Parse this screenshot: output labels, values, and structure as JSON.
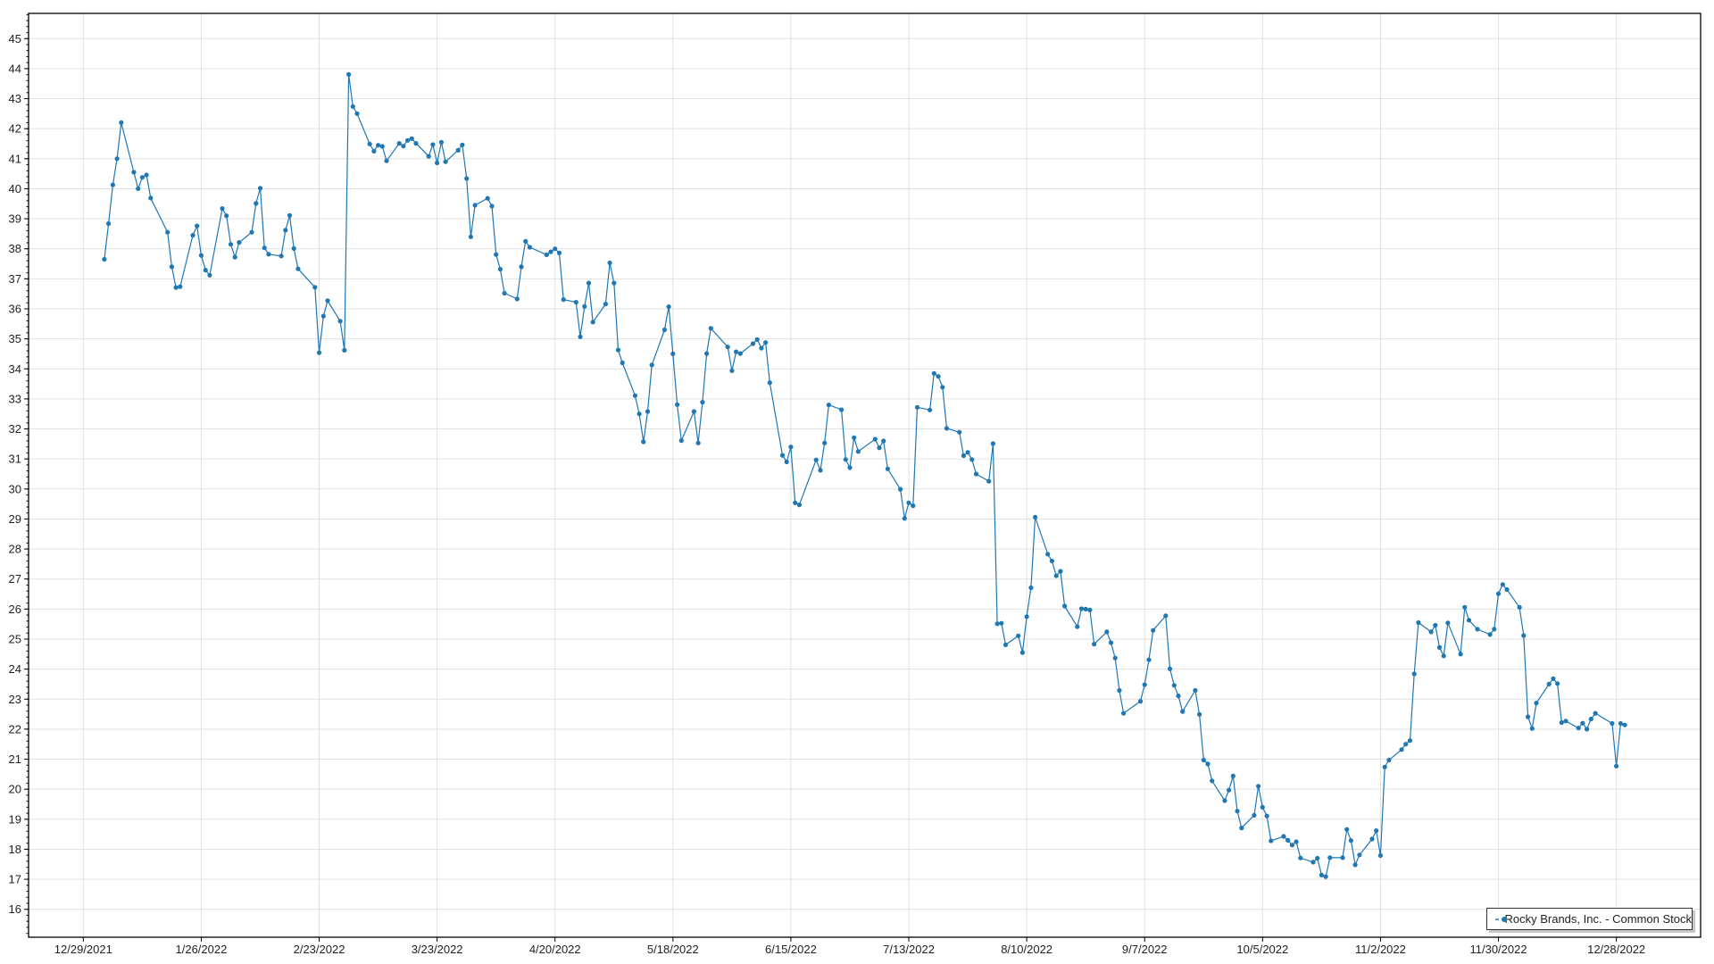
{
  "chart_data": {
    "type": "line",
    "title": "",
    "xlabel": "",
    "ylabel": "",
    "xlim": [
      "2021-12-16",
      "2023-01-17"
    ],
    "ylim": [
      15.07,
      45.84
    ],
    "grid": true,
    "legend_placement": "bottom-right",
    "markers": true,
    "color": "#1f77b4",
    "yticks": [
      "16",
      "17",
      "18",
      "19",
      "20",
      "21",
      "22",
      "23",
      "24",
      "25",
      "26",
      "27",
      "28",
      "29",
      "30",
      "31",
      "32",
      "33",
      "34",
      "35",
      "36",
      "37",
      "38",
      "39",
      "40",
      "41",
      "42",
      "43",
      "44",
      "45"
    ],
    "xticks": [
      {
        "date": "2021-12-29",
        "label": "12/29/2021"
      },
      {
        "date": "2022-01-26",
        "label": "1/26/2022"
      },
      {
        "date": "2022-02-23",
        "label": "2/23/2022"
      },
      {
        "date": "2022-03-23",
        "label": "3/23/2022"
      },
      {
        "date": "2022-04-20",
        "label": "4/20/2022"
      },
      {
        "date": "2022-05-18",
        "label": "5/18/2022"
      },
      {
        "date": "2022-06-15",
        "label": "6/15/2022"
      },
      {
        "date": "2022-07-13",
        "label": "7/13/2022"
      },
      {
        "date": "2022-08-10",
        "label": "8/10/2022"
      },
      {
        "date": "2022-09-07",
        "label": "9/7/2022"
      },
      {
        "date": "2022-10-05",
        "label": "10/5/2022"
      },
      {
        "date": "2022-11-02",
        "label": "11/2/2022"
      },
      {
        "date": "2022-11-30",
        "label": "11/30/2022"
      },
      {
        "date": "2022-12-28",
        "label": "12/28/2022"
      }
    ],
    "series": [
      {
        "name": "Rocky Brands, Inc. - Common Stock",
        "points": [
          [
            "2022-01-03",
            37.65
          ],
          [
            "2022-01-04",
            38.84
          ],
          [
            "2022-01-05",
            40.13
          ],
          [
            "2022-01-06",
            41.0
          ],
          [
            "2022-01-07",
            42.2
          ],
          [
            "2022-01-10",
            40.55
          ],
          [
            "2022-01-11",
            40.0
          ],
          [
            "2022-01-12",
            40.38
          ],
          [
            "2022-01-13",
            40.46
          ],
          [
            "2022-01-14",
            39.69
          ],
          [
            "2022-01-18",
            38.55
          ],
          [
            "2022-01-19",
            37.4
          ],
          [
            "2022-01-20",
            36.71
          ],
          [
            "2022-01-21",
            36.74
          ],
          [
            "2022-01-24",
            38.45
          ],
          [
            "2022-01-25",
            38.76
          ],
          [
            "2022-01-26",
            37.78
          ],
          [
            "2022-01-27",
            37.29
          ],
          [
            "2022-01-28",
            37.12
          ],
          [
            "2022-01-31",
            39.34
          ],
          [
            "2022-02-01",
            39.1
          ],
          [
            "2022-02-02",
            38.15
          ],
          [
            "2022-02-03",
            37.72
          ],
          [
            "2022-02-04",
            38.21
          ],
          [
            "2022-02-07",
            38.55
          ],
          [
            "2022-02-08",
            39.51
          ],
          [
            "2022-02-09",
            40.02
          ],
          [
            "2022-02-10",
            38.03
          ],
          [
            "2022-02-11",
            37.82
          ],
          [
            "2022-02-14",
            37.76
          ],
          [
            "2022-02-15",
            38.62
          ],
          [
            "2022-02-16",
            39.11
          ],
          [
            "2022-02-17",
            38.01
          ],
          [
            "2022-02-18",
            37.33
          ],
          [
            "2022-02-22",
            36.72
          ],
          [
            "2022-02-23",
            34.54
          ],
          [
            "2022-02-24",
            35.76
          ],
          [
            "2022-02-25",
            36.27
          ],
          [
            "2022-02-28",
            35.59
          ],
          [
            "2022-03-01",
            34.62
          ],
          [
            "2022-03-02",
            43.81
          ],
          [
            "2022-03-03",
            42.74
          ],
          [
            "2022-03-04",
            42.5
          ],
          [
            "2022-03-07",
            41.49
          ],
          [
            "2022-03-08",
            41.25
          ],
          [
            "2022-03-09",
            41.45
          ],
          [
            "2022-03-10",
            41.41
          ],
          [
            "2022-03-11",
            40.93
          ],
          [
            "2022-03-14",
            41.51
          ],
          [
            "2022-03-15",
            41.42
          ],
          [
            "2022-03-16",
            41.61
          ],
          [
            "2022-03-17",
            41.67
          ],
          [
            "2022-03-18",
            41.51
          ],
          [
            "2022-03-21",
            41.08
          ],
          [
            "2022-03-22",
            41.47
          ],
          [
            "2022-03-23",
            40.86
          ],
          [
            "2022-03-24",
            41.55
          ],
          [
            "2022-03-25",
            40.9
          ],
          [
            "2022-03-28",
            41.28
          ],
          [
            "2022-03-29",
            41.46
          ],
          [
            "2022-03-30",
            40.34
          ],
          [
            "2022-03-31",
            38.4
          ],
          [
            "2022-04-01",
            39.45
          ],
          [
            "2022-04-04",
            39.68
          ],
          [
            "2022-04-05",
            39.42
          ],
          [
            "2022-04-06",
            37.81
          ],
          [
            "2022-04-07",
            37.32
          ],
          [
            "2022-04-08",
            36.52
          ],
          [
            "2022-04-11",
            36.33
          ],
          [
            "2022-04-12",
            37.4
          ],
          [
            "2022-04-13",
            38.25
          ],
          [
            "2022-04-14",
            38.05
          ],
          [
            "2022-04-18",
            37.8
          ],
          [
            "2022-04-19",
            37.9
          ],
          [
            "2022-04-20",
            38.0
          ],
          [
            "2022-04-21",
            37.86
          ],
          [
            "2022-04-22",
            36.31
          ],
          [
            "2022-04-25",
            36.22
          ],
          [
            "2022-04-26",
            35.07
          ],
          [
            "2022-04-27",
            36.08
          ],
          [
            "2022-04-28",
            36.86
          ],
          [
            "2022-04-29",
            35.56
          ],
          [
            "2022-05-02",
            36.16
          ],
          [
            "2022-05-03",
            37.53
          ],
          [
            "2022-05-04",
            36.86
          ],
          [
            "2022-05-05",
            34.63
          ],
          [
            "2022-05-06",
            34.2
          ],
          [
            "2022-05-09",
            33.11
          ],
          [
            "2022-05-10",
            32.5
          ],
          [
            "2022-05-11",
            31.57
          ],
          [
            "2022-05-12",
            32.58
          ],
          [
            "2022-05-13",
            34.13
          ],
          [
            "2022-05-16",
            35.3
          ],
          [
            "2022-05-17",
            36.07
          ],
          [
            "2022-05-18",
            34.5
          ],
          [
            "2022-05-19",
            32.81
          ],
          [
            "2022-05-20",
            31.61
          ],
          [
            "2022-05-23",
            32.58
          ],
          [
            "2022-05-24",
            31.53
          ],
          [
            "2022-05-25",
            32.89
          ],
          [
            "2022-05-26",
            34.51
          ],
          [
            "2022-05-27",
            35.35
          ],
          [
            "2022-05-31",
            34.73
          ],
          [
            "2022-06-01",
            33.94
          ],
          [
            "2022-06-02",
            34.57
          ],
          [
            "2022-06-03",
            34.51
          ],
          [
            "2022-06-06",
            34.84
          ],
          [
            "2022-06-07",
            34.98
          ],
          [
            "2022-06-08",
            34.69
          ],
          [
            "2022-06-09",
            34.88
          ],
          [
            "2022-06-10",
            33.54
          ],
          [
            "2022-06-13",
            31.12
          ],
          [
            "2022-06-14",
            30.9
          ],
          [
            "2022-06-15",
            31.4
          ],
          [
            "2022-06-16",
            29.54
          ],
          [
            "2022-06-17",
            29.47
          ],
          [
            "2022-06-21",
            30.97
          ],
          [
            "2022-06-22",
            30.62
          ],
          [
            "2022-06-23",
            31.53
          ],
          [
            "2022-06-24",
            32.8
          ],
          [
            "2022-06-27",
            32.64
          ],
          [
            "2022-06-28",
            30.98
          ],
          [
            "2022-06-29",
            30.71
          ],
          [
            "2022-06-30",
            31.71
          ],
          [
            "2022-07-01",
            31.25
          ],
          [
            "2022-07-05",
            31.66
          ],
          [
            "2022-07-06",
            31.37
          ],
          [
            "2022-07-07",
            31.6
          ],
          [
            "2022-07-08",
            30.67
          ],
          [
            "2022-07-11",
            29.99
          ],
          [
            "2022-07-12",
            29.02
          ],
          [
            "2022-07-13",
            29.54
          ],
          [
            "2022-07-14",
            29.44
          ],
          [
            "2022-07-15",
            32.72
          ],
          [
            "2022-07-18",
            32.63
          ],
          [
            "2022-07-19",
            33.85
          ],
          [
            "2022-07-20",
            33.75
          ],
          [
            "2022-07-21",
            33.39
          ],
          [
            "2022-07-22",
            32.02
          ],
          [
            "2022-07-25",
            31.89
          ],
          [
            "2022-07-26",
            31.11
          ],
          [
            "2022-07-27",
            31.22
          ],
          [
            "2022-07-28",
            30.98
          ],
          [
            "2022-07-29",
            30.5
          ],
          [
            "2022-08-01",
            30.26
          ],
          [
            "2022-08-02",
            31.51
          ],
          [
            "2022-08-03",
            25.51
          ],
          [
            "2022-08-04",
            25.53
          ],
          [
            "2022-08-05",
            24.81
          ],
          [
            "2022-08-08",
            25.11
          ],
          [
            "2022-08-09",
            24.55
          ],
          [
            "2022-08-10",
            25.75
          ],
          [
            "2022-08-11",
            26.71
          ],
          [
            "2022-08-12",
            29.06
          ],
          [
            "2022-08-15",
            27.83
          ],
          [
            "2022-08-16",
            27.6
          ],
          [
            "2022-08-17",
            27.11
          ],
          [
            "2022-08-18",
            27.26
          ],
          [
            "2022-08-19",
            26.1
          ],
          [
            "2022-08-22",
            25.41
          ],
          [
            "2022-08-23",
            26.01
          ],
          [
            "2022-08-24",
            26.0
          ],
          [
            "2022-08-25",
            25.97
          ],
          [
            "2022-08-26",
            24.83
          ],
          [
            "2022-08-29",
            25.24
          ],
          [
            "2022-08-30",
            24.88
          ],
          [
            "2022-08-31",
            24.37
          ],
          [
            "2022-09-01",
            23.29
          ],
          [
            "2022-09-02",
            22.53
          ],
          [
            "2022-09-06",
            22.93
          ],
          [
            "2022-09-07",
            23.48
          ],
          [
            "2022-09-08",
            24.31
          ],
          [
            "2022-09-09",
            25.29
          ],
          [
            "2022-09-12",
            25.78
          ],
          [
            "2022-09-13",
            24.01
          ],
          [
            "2022-09-14",
            23.46
          ],
          [
            "2022-09-15",
            23.11
          ],
          [
            "2022-09-16",
            22.59
          ],
          [
            "2022-09-19",
            23.29
          ],
          [
            "2022-09-20",
            22.49
          ],
          [
            "2022-09-21",
            20.97
          ],
          [
            "2022-09-22",
            20.84
          ],
          [
            "2022-09-23",
            20.28
          ],
          [
            "2022-09-26",
            19.62
          ],
          [
            "2022-09-27",
            19.97
          ],
          [
            "2022-09-28",
            20.44
          ],
          [
            "2022-09-29",
            19.27
          ],
          [
            "2022-09-30",
            18.71
          ],
          [
            "2022-10-03",
            19.13
          ],
          [
            "2022-10-04",
            20.1
          ],
          [
            "2022-10-05",
            19.4
          ],
          [
            "2022-10-06",
            19.11
          ],
          [
            "2022-10-07",
            18.28
          ],
          [
            "2022-10-10",
            18.43
          ],
          [
            "2022-10-11",
            18.3
          ],
          [
            "2022-10-12",
            18.14
          ],
          [
            "2022-10-13",
            18.25
          ],
          [
            "2022-10-14",
            17.71
          ],
          [
            "2022-10-17",
            17.57
          ],
          [
            "2022-10-18",
            17.7
          ],
          [
            "2022-10-19",
            17.14
          ],
          [
            "2022-10-20",
            17.09
          ],
          [
            "2022-10-21",
            17.72
          ],
          [
            "2022-10-24",
            17.72
          ],
          [
            "2022-10-25",
            18.66
          ],
          [
            "2022-10-26",
            18.29
          ],
          [
            "2022-10-27",
            17.48
          ],
          [
            "2022-10-28",
            17.81
          ],
          [
            "2022-10-31",
            18.34
          ],
          [
            "2022-11-01",
            18.62
          ],
          [
            "2022-11-02",
            17.79
          ],
          [
            "2022-11-03",
            20.74
          ],
          [
            "2022-11-04",
            20.97
          ],
          [
            "2022-11-07",
            21.32
          ],
          [
            "2022-11-08",
            21.5
          ],
          [
            "2022-11-09",
            21.62
          ],
          [
            "2022-11-10",
            23.84
          ],
          [
            "2022-11-11",
            25.55
          ],
          [
            "2022-11-14",
            25.24
          ],
          [
            "2022-11-15",
            25.46
          ],
          [
            "2022-11-16",
            24.72
          ],
          [
            "2022-11-17",
            24.44
          ],
          [
            "2022-11-18",
            25.54
          ],
          [
            "2022-11-21",
            24.5
          ],
          [
            "2022-11-22",
            26.06
          ],
          [
            "2022-11-23",
            25.63
          ],
          [
            "2022-11-25",
            25.33
          ],
          [
            "2022-11-28",
            25.15
          ],
          [
            "2022-11-29",
            25.33
          ],
          [
            "2022-11-30",
            26.51
          ],
          [
            "2022-12-01",
            26.82
          ],
          [
            "2022-12-02",
            26.65
          ],
          [
            "2022-12-05",
            26.06
          ],
          [
            "2022-12-06",
            25.12
          ],
          [
            "2022-12-07",
            22.41
          ],
          [
            "2022-12-08",
            22.02
          ],
          [
            "2022-12-09",
            22.87
          ],
          [
            "2022-12-12",
            23.5
          ],
          [
            "2022-12-13",
            23.68
          ],
          [
            "2022-12-14",
            23.52
          ],
          [
            "2022-12-15",
            22.22
          ],
          [
            "2022-12-16",
            22.27
          ],
          [
            "2022-12-19",
            22.04
          ],
          [
            "2022-12-20",
            22.2
          ],
          [
            "2022-12-21",
            22.0
          ],
          [
            "2022-12-22",
            22.34
          ],
          [
            "2022-12-23",
            22.53
          ],
          [
            "2022-12-27",
            22.19
          ],
          [
            "2022-12-28",
            20.77
          ],
          [
            "2022-12-29",
            22.19
          ],
          [
            "2022-12-30",
            22.14
          ]
        ]
      }
    ]
  },
  "legend": {
    "label": "Rocky Brands, Inc. - Common Stock"
  }
}
